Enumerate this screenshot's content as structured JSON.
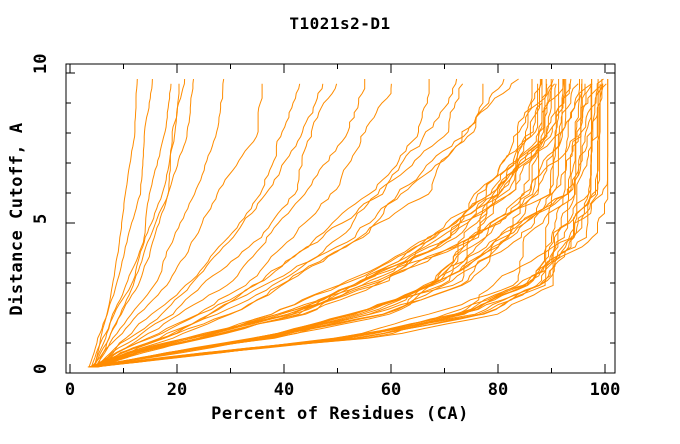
{
  "title": "T1021s2-D1",
  "chart_data": {
    "type": "line",
    "title": "T1021s2-D1",
    "xlabel": "Percent of Residues (CA)",
    "ylabel": "Distance Cutoff, A",
    "xlim": [
      0,
      102
    ],
    "ylim": [
      0,
      10.3
    ],
    "grid": false,
    "legend": "none",
    "x_ticks_major": [
      0,
      20,
      40,
      60,
      80,
      100
    ],
    "x_ticks_minor": [
      10,
      30,
      50,
      70,
      90
    ],
    "x_tick_labels": [
      "0",
      "20",
      "40",
      "60",
      "80",
      "100"
    ],
    "y_ticks_major": [
      0,
      5,
      10
    ],
    "y_ticks_minor": [
      1,
      2,
      3,
      4,
      6,
      7,
      8,
      9
    ],
    "y_tick_labels": [
      "0",
      "5",
      "10"
    ],
    "line_color": "#FF8C00",
    "axis_color": "#000000",
    "background_color": "#FFFFFF",
    "description": "Each curve is one predicted model: percent of CA residues (x) superimposable within a distance cutoff in Angstroms (y). Curves start near (4%, 0.2A) and rise to their final percent at cutoff ~9.8A.",
    "anchor_cutoffs": [
      0.2,
      0.7,
      1.2,
      2,
      3,
      4.5,
      6,
      8,
      9.8
    ],
    "profiles": {
      "A": [
        0,
        0.25,
        0.53,
        0.75,
        0.865,
        0.935,
        0.97,
        0.99,
        1
      ],
      "B": [
        0,
        0.17,
        0.38,
        0.58,
        0.74,
        0.865,
        0.935,
        0.985,
        1
      ],
      "C": [
        0,
        0.1,
        0.24,
        0.43,
        0.6,
        0.78,
        0.895,
        0.97,
        1
      ],
      "D": [
        0,
        0.08,
        0.18,
        0.32,
        0.48,
        0.655,
        0.79,
        0.925,
        1
      ],
      "E": [
        0,
        0.07,
        0.15,
        0.28,
        0.44,
        0.62,
        0.77,
        0.92,
        1
      ]
    },
    "series": [
      {
        "end_percent": 12.5,
        "start_percent": 4.2,
        "profile": "E"
      },
      {
        "end_percent": 15.5,
        "start_percent": 3.8,
        "profile": "E"
      },
      {
        "end_percent": 19.0,
        "start_percent": 4.5,
        "profile": "E"
      },
      {
        "end_percent": 20.5,
        "start_percent": 4.0,
        "profile": "E"
      },
      {
        "end_percent": 21.5,
        "start_percent": 4.8,
        "profile": "E"
      },
      {
        "end_percent": 23.0,
        "start_percent": 4.4,
        "profile": "E"
      },
      {
        "end_percent": 29.0,
        "start_percent": 4.6,
        "profile": "E"
      },
      {
        "end_percent": 36.0,
        "start_percent": 4.2,
        "profile": "E"
      },
      {
        "end_percent": 43.0,
        "start_percent": 4.9,
        "profile": "E"
      },
      {
        "end_percent": 48.0,
        "start_percent": 4.5,
        "profile": "E"
      },
      {
        "end_percent": 50.0,
        "start_percent": 4.3,
        "profile": "D"
      },
      {
        "end_percent": 55.0,
        "start_percent": 4.7,
        "profile": "D"
      },
      {
        "end_percent": 61.0,
        "start_percent": 4.1,
        "profile": "D"
      },
      {
        "end_percent": 67.0,
        "start_percent": 4.6,
        "profile": "D"
      },
      {
        "end_percent": 72.5,
        "start_percent": 4.4,
        "profile": "D"
      },
      {
        "end_percent": 74.0,
        "start_percent": 5.0,
        "profile": "D"
      },
      {
        "end_percent": 77.0,
        "start_percent": 4.2,
        "profile": "D"
      },
      {
        "end_percent": 81.0,
        "start_percent": 4.7,
        "profile": "D"
      },
      {
        "end_percent": 83.5,
        "start_percent": 4.5,
        "profile": "D"
      },
      {
        "end_percent": 85.5,
        "start_percent": 3.6,
        "profile": "C"
      },
      {
        "end_percent": 86.5,
        "start_percent": 4.4,
        "profile": "C"
      },
      {
        "end_percent": 87.5,
        "start_percent": 4.0,
        "profile": "C"
      },
      {
        "end_percent": 88.2,
        "start_percent": 4.8,
        "profile": "C"
      },
      {
        "end_percent": 88.8,
        "start_percent": 3.9,
        "profile": "C"
      },
      {
        "end_percent": 89.3,
        "start_percent": 4.6,
        "profile": "C"
      },
      {
        "end_percent": 89.8,
        "start_percent": 4.2,
        "profile": "C"
      },
      {
        "end_percent": 90.3,
        "start_percent": 5.0,
        "profile": "C"
      },
      {
        "end_percent": 90.8,
        "start_percent": 3.7,
        "profile": "C"
      },
      {
        "end_percent": 91.3,
        "start_percent": 4.5,
        "profile": "C"
      },
      {
        "end_percent": 91.8,
        "start_percent": 4.1,
        "profile": "C"
      },
      {
        "end_percent": 92.3,
        "start_percent": 4.8,
        "profile": "C"
      },
      {
        "end_percent": 88.5,
        "start_percent": 4.3,
        "profile": "B"
      },
      {
        "end_percent": 89.6,
        "start_percent": 3.8,
        "profile": "B"
      },
      {
        "end_percent": 90.6,
        "start_percent": 4.6,
        "profile": "B"
      },
      {
        "end_percent": 91.6,
        "start_percent": 4.2,
        "profile": "B"
      },
      {
        "end_percent": 92.6,
        "start_percent": 4.9,
        "profile": "B"
      },
      {
        "end_percent": 93.2,
        "start_percent": 3.9,
        "profile": "B"
      },
      {
        "end_percent": 93.8,
        "start_percent": 4.5,
        "profile": "B"
      },
      {
        "end_percent": 94.4,
        "start_percent": 4.1,
        "profile": "B"
      },
      {
        "end_percent": 95.0,
        "start_percent": 4.7,
        "profile": "B"
      },
      {
        "end_percent": 95.6,
        "start_percent": 4.4,
        "profile": "B"
      },
      {
        "end_percent": 96.2,
        "start_percent": 3.8,
        "profile": "B"
      },
      {
        "end_percent": 96.8,
        "start_percent": 4.6,
        "profile": "B"
      },
      {
        "end_percent": 97.4,
        "start_percent": 4.2,
        "profile": "B"
      },
      {
        "end_percent": 94.8,
        "start_percent": 4.0,
        "profile": "A"
      },
      {
        "end_percent": 95.8,
        "start_percent": 4.5,
        "profile": "A"
      },
      {
        "end_percent": 96.6,
        "start_percent": 3.9,
        "profile": "A"
      },
      {
        "end_percent": 97.2,
        "start_percent": 4.7,
        "profile": "A"
      },
      {
        "end_percent": 97.8,
        "start_percent": 4.3,
        "profile": "A"
      },
      {
        "end_percent": 98.4,
        "start_percent": 3.7,
        "profile": "A"
      },
      {
        "end_percent": 98.9,
        "start_percent": 4.6,
        "profile": "A"
      },
      {
        "end_percent": 99.3,
        "start_percent": 4.1,
        "profile": "A"
      },
      {
        "end_percent": 99.6,
        "start_percent": 4.8,
        "profile": "A"
      },
      {
        "end_percent": 99.9,
        "start_percent": 4.4,
        "profile": "A"
      },
      {
        "end_percent": 100.1,
        "start_percent": 3.9,
        "profile": "A"
      },
      {
        "end_percent": 100.3,
        "start_percent": 4.2,
        "profile": "A"
      },
      {
        "end_percent": 99.1,
        "start_percent": 4.5,
        "profile": "A"
      },
      {
        "end_percent": 98.0,
        "start_percent": 4.0,
        "profile": "A"
      }
    ]
  }
}
